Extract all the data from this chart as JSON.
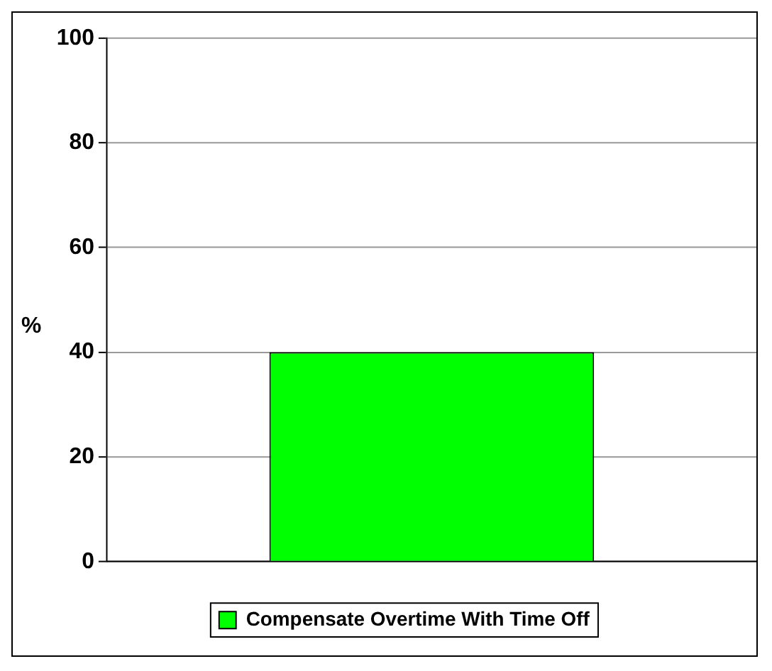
{
  "chart_data": {
    "type": "bar",
    "ylabel": "%",
    "categories": [
      null
    ],
    "series": [
      {
        "name": "Compensate Overtime With Time Off",
        "color": "#00ff00",
        "values": [
          40
        ]
      }
    ],
    "ylim": [
      0,
      100
    ],
    "yticks": [
      0,
      20,
      40,
      60,
      80,
      100
    ],
    "grid": "y",
    "legend": "bottom"
  }
}
